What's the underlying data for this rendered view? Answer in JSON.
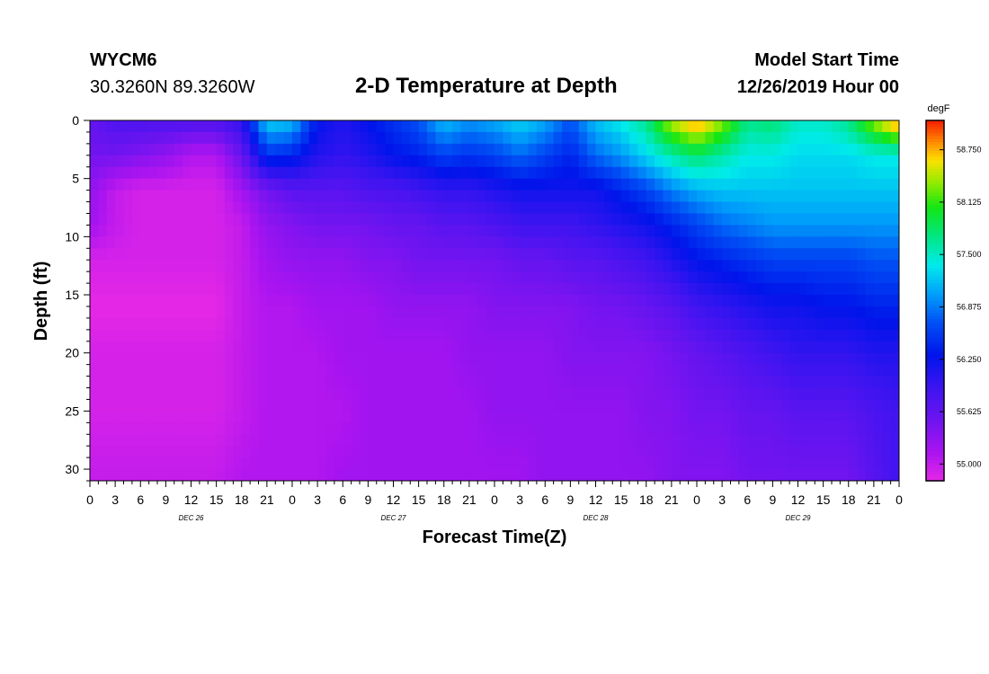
{
  "header": {
    "station": "WYCM6",
    "coords": "30.3260N 89.3260W",
    "title": "2-D Temperature at Depth",
    "model_start_label": "Model Start Time",
    "model_start_value": "12/26/2019 Hour 00"
  },
  "chart_data": {
    "type": "heatmap",
    "title": "2-D Temperature at Depth",
    "xlabel": "Forecast Time(Z)",
    "ylabel": "Depth (ft)",
    "x_range_hours": [
      0,
      96
    ],
    "y_range_ft": [
      0,
      31
    ],
    "y_ticks": [
      "0",
      "5",
      "10",
      "15",
      "20",
      "25",
      "30"
    ],
    "x_tick_labels": [
      "0",
      "3",
      "6",
      "9",
      "12",
      "15",
      "18",
      "21",
      "0",
      "3",
      "6",
      "9",
      "12",
      "15",
      "18",
      "21",
      "0",
      "3",
      "6",
      "9",
      "12",
      "15",
      "18",
      "21",
      "0",
      "3",
      "6",
      "9",
      "12",
      "15",
      "18",
      "21",
      "0"
    ],
    "date_labels": [
      {
        "text": "DEC 26",
        "hour": 12
      },
      {
        "text": "DEC 27",
        "hour": 36
      },
      {
        "text": "DEC 28",
        "hour": 60
      },
      {
        "text": "DEC 29",
        "hour": 84
      }
    ],
    "colorbar": {
      "unit": "degF",
      "min": 54.8,
      "max": 59.1,
      "ticks": [
        "58.750",
        "58.125",
        "57.500",
        "56.875",
        "56.250",
        "55.625",
        "55.000"
      ]
    },
    "depth_bands": [
      {
        "depth_ft": 0,
        "temps": [
          55.6,
          55.8,
          55.8,
          55.8,
          55.8,
          55.8,
          56.0,
          57.3,
          57.2,
          56.3,
          56.1,
          56.3,
          56.5,
          56.7,
          57.2,
          57.0,
          57.1,
          57.3,
          57.1,
          56.7,
          57.2,
          57.4,
          57.7,
          58.5,
          58.9,
          58.4,
          57.7,
          57.8,
          57.5,
          57.5,
          57.7,
          58.4,
          59.0
        ]
      },
      {
        "depth_ft": 3,
        "temps": [
          55.5,
          55.5,
          55.4,
          55.3,
          55.1,
          55.1,
          55.6,
          56.5,
          56.4,
          56.1,
          56.0,
          56.1,
          56.3,
          56.4,
          56.6,
          56.5,
          56.6,
          56.8,
          56.6,
          56.4,
          56.8,
          57.0,
          57.3,
          57.6,
          57.8,
          57.6,
          57.4,
          57.4,
          57.3,
          57.3,
          57.3,
          57.4,
          57.4
        ]
      },
      {
        "depth_ft": 6,
        "temps": [
          55.3,
          55.0,
          54.9,
          54.9,
          54.9,
          54.9,
          55.2,
          55.5,
          55.7,
          55.7,
          55.7,
          55.8,
          55.8,
          55.9,
          56.0,
          56.0,
          56.1,
          56.2,
          56.2,
          56.2,
          56.2,
          56.4,
          56.6,
          56.9,
          57.1,
          57.2,
          57.2,
          57.2,
          57.2,
          57.2,
          57.2,
          57.2,
          57.2
        ]
      },
      {
        "depth_ft": 9,
        "temps": [
          55.2,
          55.0,
          54.9,
          54.9,
          54.9,
          54.9,
          55.0,
          55.3,
          55.4,
          55.5,
          55.5,
          55.5,
          55.6,
          55.6,
          55.7,
          55.7,
          55.8,
          55.9,
          55.9,
          55.9,
          56.0,
          56.1,
          56.2,
          56.4,
          56.6,
          56.8,
          56.9,
          57.0,
          57.0,
          57.0,
          57.0,
          57.0,
          57.0
        ]
      },
      {
        "depth_ft": 12,
        "temps": [
          54.9,
          54.9,
          54.9,
          54.9,
          54.9,
          54.9,
          55.0,
          55.2,
          55.3,
          55.3,
          55.3,
          55.4,
          55.4,
          55.5,
          55.5,
          55.5,
          55.5,
          55.6,
          55.6,
          55.7,
          55.7,
          55.8,
          55.9,
          56.1,
          56.3,
          56.4,
          56.5,
          56.6,
          56.6,
          56.6,
          56.6,
          56.7,
          56.7
        ]
      },
      {
        "depth_ft": 16,
        "temps": [
          54.8,
          54.8,
          54.8,
          54.8,
          54.8,
          54.8,
          55.0,
          55.1,
          55.1,
          55.2,
          55.2,
          55.2,
          55.3,
          55.3,
          55.3,
          55.3,
          55.4,
          55.4,
          55.4,
          55.4,
          55.5,
          55.5,
          55.6,
          55.7,
          55.9,
          56.0,
          56.1,
          56.2,
          56.2,
          56.3,
          56.3,
          56.4,
          56.4
        ]
      },
      {
        "depth_ft": 20,
        "temps": [
          54.9,
          54.9,
          54.9,
          54.9,
          54.9,
          54.9,
          55.0,
          55.1,
          55.1,
          55.1,
          55.2,
          55.2,
          55.2,
          55.2,
          55.2,
          55.3,
          55.3,
          55.3,
          55.3,
          55.4,
          55.4,
          55.4,
          55.4,
          55.5,
          55.6,
          55.7,
          55.8,
          55.9,
          56.0,
          56.0,
          56.0,
          56.1,
          56.1
        ]
      },
      {
        "depth_ft": 25,
        "temps": [
          54.9,
          54.9,
          54.9,
          54.9,
          54.9,
          54.9,
          55.0,
          55.1,
          55.1,
          55.1,
          55.1,
          55.2,
          55.2,
          55.2,
          55.2,
          55.2,
          55.3,
          55.3,
          55.3,
          55.3,
          55.3,
          55.3,
          55.4,
          55.4,
          55.5,
          55.5,
          55.6,
          55.6,
          55.7,
          55.7,
          55.7,
          55.8,
          55.9
        ]
      },
      {
        "depth_ft": 31,
        "temps": [
          55.0,
          55.0,
          55.0,
          55.0,
          55.0,
          55.0,
          55.1,
          55.1,
          55.1,
          55.1,
          55.2,
          55.2,
          55.2,
          55.2,
          55.2,
          55.2,
          55.2,
          55.2,
          55.3,
          55.3,
          55.3,
          55.3,
          55.3,
          55.4,
          55.4,
          55.4,
          55.5,
          55.5,
          55.5,
          55.5,
          55.5,
          55.7,
          55.9
        ]
      }
    ]
  }
}
